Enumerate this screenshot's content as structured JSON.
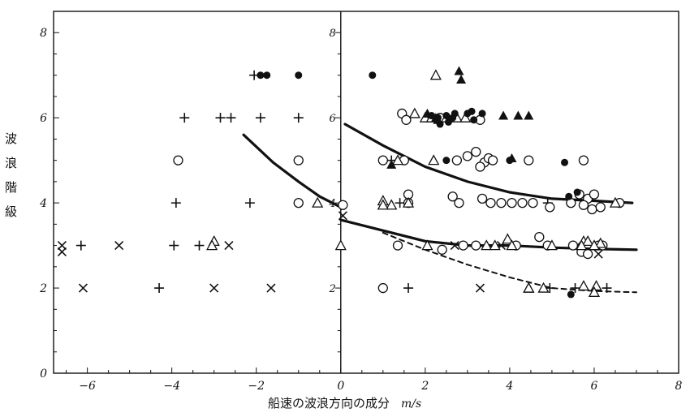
{
  "chart_data": {
    "type": "scatter",
    "title": "",
    "ylabel_chars": [
      "波",
      "浪",
      "階",
      "級"
    ],
    "xlabel": "船速の波浪方向の成分",
    "xunit": "m/s",
    "xlim": [
      -6.8,
      8
    ],
    "ylim": [
      0,
      8.5
    ],
    "x_ticks": [
      -6,
      -4,
      -2,
      0,
      2,
      4,
      6,
      8
    ],
    "x_tick_labels": [
      "−6",
      "−4",
      "−2",
      "0",
      "2",
      "4",
      "6",
      "8"
    ],
    "y_ticks": [
      0,
      2,
      4,
      6,
      8
    ],
    "y_tick_labels": [
      "0",
      "2",
      "4",
      "6",
      "8"
    ],
    "inner_y_tick_labels": [
      "2",
      "4",
      "6",
      "8"
    ],
    "grid": false,
    "markers": {
      "plus": [
        [
          -2.05,
          7
        ],
        [
          -3.7,
          6
        ],
        [
          -2.85,
          6
        ],
        [
          -2.6,
          6
        ],
        [
          -1.9,
          6
        ],
        [
          -1.0,
          6
        ],
        [
          -3.9,
          4
        ],
        [
          -2.15,
          4
        ],
        [
          -6.15,
          3
        ],
        [
          -3.95,
          3
        ],
        [
          -3.35,
          3
        ],
        [
          -4.3,
          2
        ],
        [
          1.6,
          2
        ],
        [
          4.95,
          2
        ],
        [
          5.55,
          2
        ],
        [
          6.3,
          2
        ],
        [
          4.9,
          4
        ],
        [
          1.2,
          5
        ],
        [
          1.4,
          4
        ]
      ],
      "x": [
        [
          -6.6,
          3
        ],
        [
          -6.6,
          2.85
        ],
        [
          -5.25,
          3
        ],
        [
          -2.65,
          3
        ],
        [
          -6.1,
          2
        ],
        [
          -3.0,
          2
        ],
        [
          -1.65,
          2
        ],
        [
          0.05,
          3.7
        ],
        [
          3.3,
          2
        ],
        [
          3.8,
          3
        ],
        [
          5.6,
          3
        ],
        [
          6.1,
          2.8
        ],
        [
          2.7,
          3
        ]
      ],
      "circle": [
        [
          -3.85,
          5
        ],
        [
          -1.0,
          5
        ],
        [
          -1.0,
          4
        ],
        [
          0.05,
          3.95
        ],
        [
          1.0,
          2
        ],
        [
          1.35,
          3
        ],
        [
          1.45,
          6.1
        ],
        [
          1.55,
          5.95
        ],
        [
          2.35,
          6
        ],
        [
          3.3,
          5.95
        ],
        [
          1.0,
          5
        ],
        [
          1.5,
          5
        ],
        [
          2.75,
          5
        ],
        [
          3.0,
          5.1
        ],
        [
          3.2,
          5.2
        ],
        [
          3.4,
          4.95
        ],
        [
          3.5,
          5.05
        ],
        [
          3.3,
          4.85
        ],
        [
          3.6,
          5
        ],
        [
          4.45,
          5
        ],
        [
          5.75,
          5
        ],
        [
          1.6,
          4
        ],
        [
          2.65,
          4.15
        ],
        [
          2.8,
          4
        ],
        [
          3.35,
          4.1
        ],
        [
          3.55,
          4
        ],
        [
          3.8,
          4
        ],
        [
          4.05,
          4
        ],
        [
          4.3,
          4
        ],
        [
          4.55,
          4
        ],
        [
          4.95,
          3.9
        ],
        [
          5.45,
          4
        ],
        [
          5.65,
          4.2
        ],
        [
          5.85,
          4.1
        ],
        [
          6.0,
          4.2
        ],
        [
          5.75,
          3.95
        ],
        [
          5.95,
          3.85
        ],
        [
          6.15,
          3.9
        ],
        [
          6.6,
          4.0
        ],
        [
          1.6,
          4.2
        ],
        [
          2.9,
          3
        ],
        [
          3.2,
          3
        ],
        [
          4.15,
          3
        ],
        [
          4.7,
          3.2
        ],
        [
          4.9,
          3
        ],
        [
          5.5,
          3
        ],
        [
          5.7,
          2.85
        ],
        [
          5.85,
          2.8
        ],
        [
          6.1,
          3
        ],
        [
          6.2,
          3
        ],
        [
          2.4,
          2.9
        ]
      ],
      "triangle": [
        [
          2.25,
          7
        ],
        [
          1.75,
          6.1
        ],
        [
          2.0,
          6
        ],
        [
          2.15,
          6
        ],
        [
          2.5,
          6
        ],
        [
          2.75,
          6
        ],
        [
          2.95,
          6
        ],
        [
          1.35,
          5
        ],
        [
          2.2,
          5
        ],
        [
          -0.55,
          4
        ],
        [
          1.0,
          4.05
        ],
        [
          1.2,
          3.95
        ],
        [
          1.6,
          4
        ],
        [
          0.0,
          3
        ],
        [
          -3.0,
          3.1
        ],
        [
          -3.05,
          3.0
        ],
        [
          2.05,
          3
        ],
        [
          3.45,
          3
        ],
        [
          3.65,
          3
        ],
        [
          3.95,
          3.15
        ],
        [
          4.05,
          3
        ],
        [
          5.0,
          3
        ],
        [
          5.75,
          3.1
        ],
        [
          5.85,
          3.1
        ],
        [
          5.7,
          3.0
        ],
        [
          6.15,
          3.05
        ],
        [
          6.0,
          3.0
        ],
        [
          4.45,
          2.0
        ],
        [
          4.8,
          2.0
        ],
        [
          5.75,
          2.05
        ],
        [
          6.05,
          2.05
        ],
        [
          6.0,
          1.9
        ],
        [
          1.0,
          3.95
        ],
        [
          6.5,
          4
        ],
        [
          4.45,
          2.0
        ]
      ],
      "dot": [
        [
          -1.9,
          7
        ],
        [
          -1.75,
          7
        ],
        [
          -1.0,
          7
        ],
        [
          0.75,
          7
        ],
        [
          2.15,
          6.05
        ],
        [
          2.3,
          6
        ],
        [
          2.5,
          6.05
        ],
        [
          2.7,
          6.1
        ],
        [
          3.0,
          6.1
        ],
        [
          3.15,
          5.95
        ],
        [
          3.35,
          6.1
        ],
        [
          2.55,
          5.9
        ],
        [
          2.65,
          6.0
        ],
        [
          2.35,
          5.85
        ],
        [
          3.1,
          6.15
        ],
        [
          2.5,
          5.0
        ],
        [
          4.0,
          5.0
        ],
        [
          5.3,
          4.95
        ],
        [
          5.6,
          4.25
        ],
        [
          5.4,
          4.15
        ],
        [
          5.45,
          1.85
        ]
      ],
      "filled_triangle": [
        [
          2.8,
          7.1
        ],
        [
          2.85,
          6.9
        ],
        [
          2.05,
          6.1
        ],
        [
          3.85,
          6.05
        ],
        [
          4.2,
          6.05
        ],
        [
          4.45,
          6.05
        ],
        [
          2.25,
          6.0
        ],
        [
          4.05,
          5.05
        ],
        [
          1.2,
          4.9
        ],
        [
          2.3,
          5.95
        ]
      ]
    },
    "curves": [
      {
        "style": "solid",
        "points": [
          [
            -2.3,
            5.6
          ],
          [
            -1.6,
            4.95
          ],
          [
            -1.0,
            4.5
          ],
          [
            -0.5,
            4.15
          ],
          [
            0,
            3.9
          ]
        ]
      },
      {
        "style": "solid",
        "points": [
          [
            0.1,
            5.85
          ],
          [
            1.0,
            5.35
          ],
          [
            2.0,
            4.85
          ],
          [
            3.0,
            4.5
          ],
          [
            4.0,
            4.25
          ],
          [
            5.0,
            4.1
          ],
          [
            6.0,
            4.05
          ],
          [
            6.9,
            4.0
          ]
        ]
      },
      {
        "style": "solid",
        "points": [
          [
            0.0,
            3.6
          ],
          [
            1.0,
            3.35
          ],
          [
            2.0,
            3.1
          ],
          [
            3.0,
            3.0
          ],
          [
            4.0,
            3.0
          ],
          [
            5.0,
            2.95
          ],
          [
            6.0,
            2.92
          ],
          [
            7.0,
            2.9
          ]
        ]
      },
      {
        "style": "dashed",
        "points": [
          [
            1.0,
            3.3
          ],
          [
            2.0,
            2.9
          ],
          [
            3.0,
            2.55
          ],
          [
            4.0,
            2.25
          ],
          [
            5.0,
            2.0
          ],
          [
            6.0,
            1.93
          ],
          [
            7.0,
            1.9
          ]
        ]
      }
    ]
  }
}
